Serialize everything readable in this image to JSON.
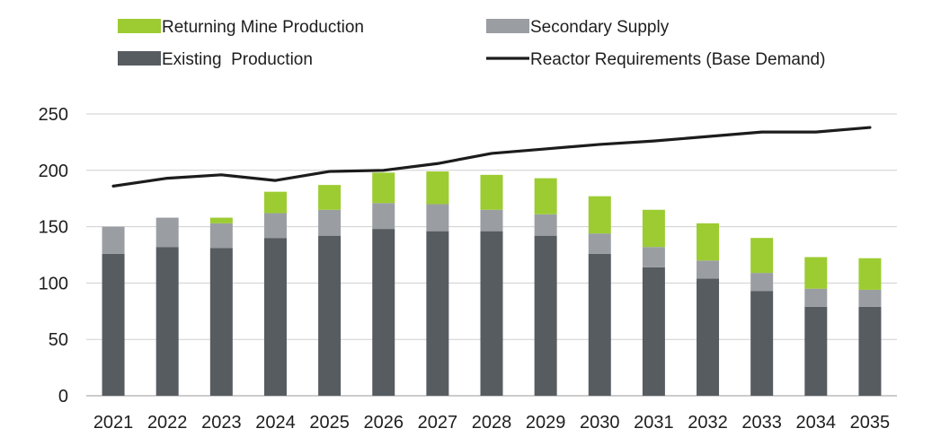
{
  "chart_data": {
    "type": "bar",
    "stacked": true,
    "title": "",
    "xlabel": "",
    "ylabel": "",
    "ylim": [
      0,
      250
    ],
    "yticks": [
      0,
      50,
      100,
      150,
      200,
      250
    ],
    "grid": true,
    "legend_position": "top",
    "categories": [
      "2021",
      "2022",
      "2023",
      "2024",
      "2025",
      "2026",
      "2027",
      "2028",
      "2029",
      "2030",
      "2031",
      "2032",
      "2033",
      "2034",
      "2035"
    ],
    "series": [
      {
        "name": "Existing  Production",
        "kind": "bar",
        "color": "#575c61",
        "values": [
          126,
          132,
          131,
          140,
          142,
          148,
          146,
          146,
          142,
          126,
          114,
          104,
          93,
          79,
          79
        ]
      },
      {
        "name": "Secondary Supply",
        "kind": "bar",
        "color": "#9a9ea3",
        "values": [
          24,
          26,
          22,
          22,
          23,
          23,
          24,
          19,
          19,
          18,
          18,
          16,
          16,
          16,
          15
        ]
      },
      {
        "name": "Returning Mine Production",
        "kind": "bar",
        "color": "#9ccc32",
        "values": [
          0,
          0,
          5,
          19,
          22,
          27,
          29,
          31,
          32,
          33,
          33,
          33,
          31,
          28,
          28
        ]
      },
      {
        "name": "Reactor Requirements (Base Demand)",
        "kind": "line",
        "color": "#1c1c1c",
        "values": [
          186,
          193,
          196,
          191,
          199,
          200,
          206,
          215,
          219,
          223,
          226,
          230,
          234,
          234,
          238
        ]
      }
    ]
  }
}
